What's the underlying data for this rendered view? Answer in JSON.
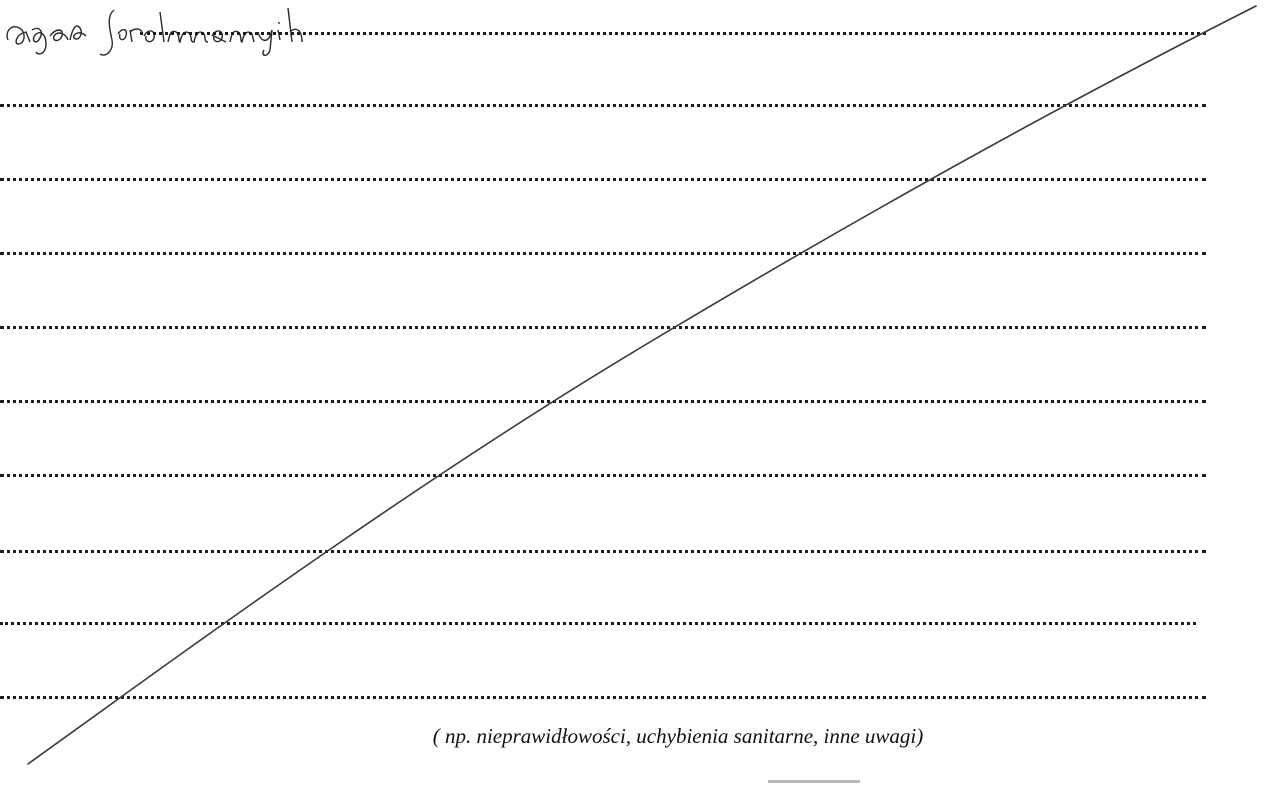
{
  "document": {
    "handwritten_text": "Agata Jasiński",
    "caption": "( np. nieprawidłowości, uchybienia sanitarne, inne uwagi)"
  },
  "form": {
    "dotted_line_count": 11,
    "state": "crossed-out"
  }
}
